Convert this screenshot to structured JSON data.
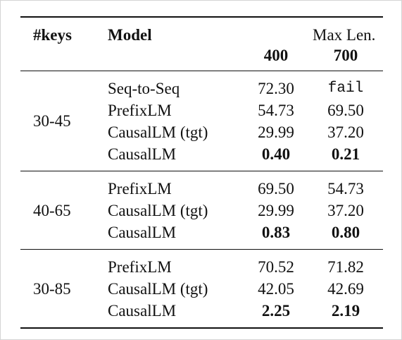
{
  "header": {
    "keys": "#keys",
    "model": "Model",
    "maxlen": "Max Len.",
    "col_400": "400",
    "col_700": "700"
  },
  "groups": [
    {
      "keys": "30-45",
      "rows": [
        {
          "model": "Seq-to-Seq",
          "v400": "72.30",
          "v700": "fail"
        },
        {
          "model": "PrefixLM",
          "v400": "54.73",
          "v700": "69.50"
        },
        {
          "model": "CausalLM (tgt)",
          "v400": "29.99",
          "v700": "37.20"
        },
        {
          "model": "CausalLM",
          "v400": "0.40",
          "v700": "0.21"
        }
      ]
    },
    {
      "keys": "40-65",
      "rows": [
        {
          "model": "PrefixLM",
          "v400": "69.50",
          "v700": "54.73"
        },
        {
          "model": "CausalLM (tgt)",
          "v400": "29.99",
          "v700": "37.20"
        },
        {
          "model": "CausalLM",
          "v400": "0.83",
          "v700": "0.80"
        }
      ]
    },
    {
      "keys": "30-85",
      "rows": [
        {
          "model": "PrefixLM",
          "v400": "70.52",
          "v700": "71.82"
        },
        {
          "model": "CausalLM (tgt)",
          "v400": "42.05",
          "v700": "42.69"
        },
        {
          "model": "CausalLM",
          "v400": "2.25",
          "v700": "2.19"
        }
      ]
    }
  ]
}
